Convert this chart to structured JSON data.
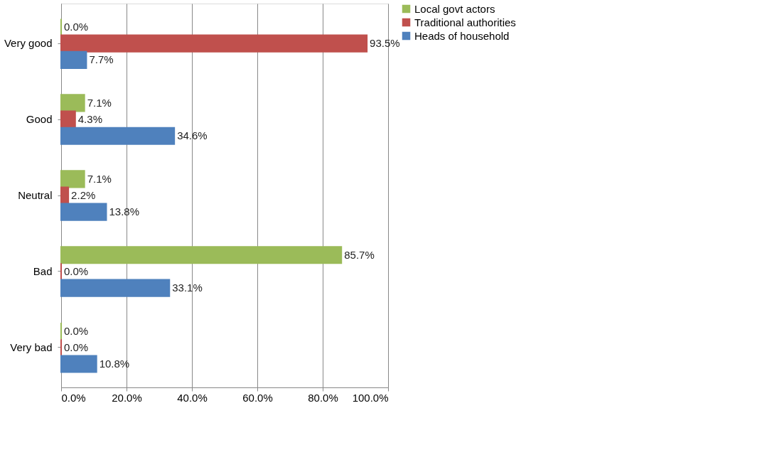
{
  "chart_data": {
    "type": "bar",
    "orientation": "horizontal",
    "categories": [
      "Very good",
      "Good",
      "Neutral",
      "Bad",
      "Very bad"
    ],
    "series": [
      {
        "name": "Local govt actors",
        "color": "#9bbb59",
        "values": [
          0.0,
          7.1,
          7.1,
          85.7,
          0.0
        ],
        "value_labels": [
          "0.0%",
          "7.1%",
          "7.1%",
          "85.7%",
          "0.0%"
        ]
      },
      {
        "name": "Traditional authorities",
        "color": "#c0504d",
        "values": [
          93.5,
          4.3,
          2.2,
          0.0,
          0.0
        ],
        "value_labels": [
          "93.5%",
          "4.3%",
          "2.2%",
          "0.0%",
          "0.0%"
        ]
      },
      {
        "name": "Heads of household",
        "color": "#4f81bd",
        "values": [
          7.7,
          34.6,
          13.8,
          33.1,
          10.8
        ],
        "value_labels": [
          "7.7%",
          "34.6%",
          "13.8%",
          "33.1%",
          "10.8%"
        ]
      }
    ],
    "xlim": [
      0,
      100
    ],
    "xticks": [
      {
        "value": 0,
        "label": "0.0%"
      },
      {
        "value": 20,
        "label": "20.0%"
      },
      {
        "value": 40,
        "label": "40.0%"
      },
      {
        "value": 60,
        "label": "60.0%"
      },
      {
        "value": 80,
        "label": "80.0%"
      },
      {
        "value": 100,
        "label": "100.0%"
      }
    ],
    "grid": "x",
    "legend": "right"
  }
}
